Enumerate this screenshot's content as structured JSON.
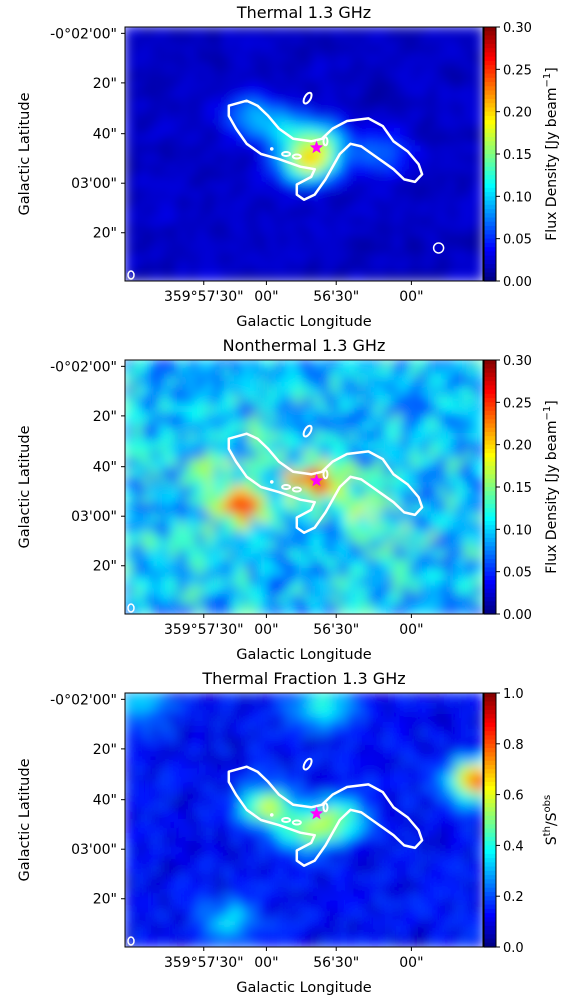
{
  "chart_data": [
    {
      "type": "heatmap",
      "title": "Thermal 1.3 GHz",
      "xlabel": "Galactic Longitude",
      "ylabel": "Galactic Latitude",
      "x_ticks": [
        "359°57'30\"",
        "00\"",
        "56'30\"",
        "00\""
      ],
      "y_ticks": [
        "-0°02'00\"",
        "20\"",
        "40\"",
        "03'00\"",
        "20\""
      ],
      "colorbar": {
        "label": "Flux Density [Jy beam",
        "label_sup": "−1",
        "label_tail": "]",
        "ticks": [
          "0.00",
          "0.05",
          "0.10",
          "0.15",
          "0.20",
          "0.25",
          "0.30"
        ],
        "range": [
          0.0,
          0.3
        ],
        "colormap": "jet"
      },
      "background_level": 0.02,
      "blobs": [
        {
          "x": 0.45,
          "y": 0.4,
          "v": 0.09
        },
        {
          "x": 0.35,
          "y": 0.35,
          "v": 0.08
        },
        {
          "x": 0.55,
          "y": 0.45,
          "v": 0.09
        },
        {
          "x": 0.72,
          "y": 0.5,
          "v": 0.07
        },
        {
          "x": 0.5,
          "y": 0.55,
          "v": 0.1
        },
        {
          "x": 0.53,
          "y": 0.52,
          "v": 0.12
        }
      ],
      "show_contour": true,
      "markers": {
        "star_color": "#ff00ff",
        "beam": "white-circle"
      }
    },
    {
      "type": "heatmap",
      "title": "Nonthermal 1.3 GHz",
      "xlabel": "Galactic Longitude",
      "ylabel": "Galactic Latitude",
      "x_ticks": [
        "359°57'30\"",
        "00\"",
        "56'30\"",
        "00\""
      ],
      "y_ticks": [
        "-0°02'00\"",
        "20\"",
        "40\"",
        "03'00\"",
        "20\""
      ],
      "colorbar": {
        "label": "Flux Density [Jy beam",
        "label_sup": "−1",
        "label_tail": "]",
        "ticks": [
          "0.00",
          "0.05",
          "0.10",
          "0.15",
          "0.20",
          "0.25",
          "0.30"
        ],
        "range": [
          0.0,
          0.3
        ],
        "colormap": "jet"
      },
      "background_level": 0.09,
      "blobs": [
        {
          "x": 0.33,
          "y": 0.58,
          "v": 0.24
        },
        {
          "x": 0.53,
          "y": 0.48,
          "v": 0.26
        },
        {
          "x": 0.25,
          "y": 0.45,
          "v": 0.14
        },
        {
          "x": 0.65,
          "y": 0.6,
          "v": 0.14
        },
        {
          "x": 0.4,
          "y": 0.3,
          "v": 0.12
        },
        {
          "x": 0.8,
          "y": 0.7,
          "v": 0.12
        },
        {
          "x": 0.15,
          "y": 0.75,
          "v": 0.11
        }
      ],
      "show_contour": true,
      "markers": {
        "star_color": "#ff00ff",
        "beam": "none"
      }
    },
    {
      "type": "heatmap",
      "title": "Thermal Fraction 1.3 GHz",
      "xlabel": "Galactic Longitude",
      "ylabel": "Galactic Latitude",
      "x_ticks": [
        "359°57'30\"",
        "00\"",
        "56'30\"",
        "00\""
      ],
      "y_ticks": [
        "-0°02'00\"",
        "20\"",
        "40\"",
        "03'00\"",
        "20\""
      ],
      "colorbar": {
        "label": "S",
        "label_sup": "th",
        "label_tail": "/S",
        "label_sup2": "obs",
        "ticks": [
          "0.0",
          "0.2",
          "0.4",
          "0.6",
          "0.8",
          "1.0"
        ],
        "range": [
          0.0,
          1.0
        ],
        "colormap": "jet"
      },
      "background_level": 0.12,
      "blobs": [
        {
          "x": 0.4,
          "y": 0.45,
          "v": 0.55
        },
        {
          "x": 0.6,
          "y": 0.5,
          "v": 0.5
        },
        {
          "x": 0.5,
          "y": 0.55,
          "v": 0.45
        },
        {
          "x": 0.99,
          "y": 0.35,
          "v": 0.85
        },
        {
          "x": 0.55,
          "y": 0.05,
          "v": 0.45
        },
        {
          "x": 0.05,
          "y": 0.05,
          "v": 0.35
        },
        {
          "x": 0.3,
          "y": 0.9,
          "v": 0.35
        }
      ],
      "show_contour": true,
      "markers": {
        "star_color": "#ff00ff",
        "beam": "none"
      }
    }
  ]
}
